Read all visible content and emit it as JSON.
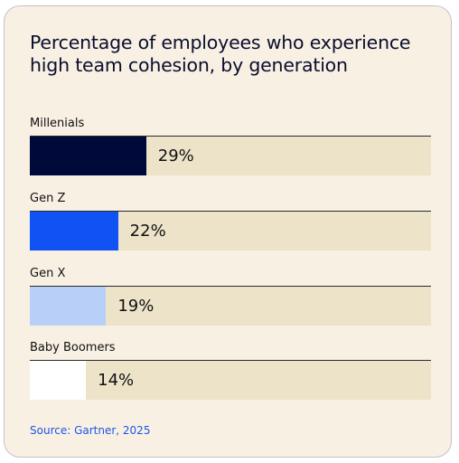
{
  "chart_data": {
    "type": "bar",
    "orientation": "horizontal",
    "title": "Percentage of employees who experience high team cohesion, by generation",
    "categories": [
      "Millenials",
      "Gen Z",
      "Gen X",
      "Baby Boomers"
    ],
    "values": [
      29,
      22,
      19,
      14
    ],
    "value_labels": [
      "29%",
      "22%",
      "19%",
      "14%"
    ],
    "colors": [
      "#000a3a",
      "#1152f5",
      "#b8cff7",
      "#ffffff"
    ],
    "track_color": "#ece3c9",
    "xlim": [
      0,
      100
    ],
    "source": "Source: Gartner, 2025"
  }
}
